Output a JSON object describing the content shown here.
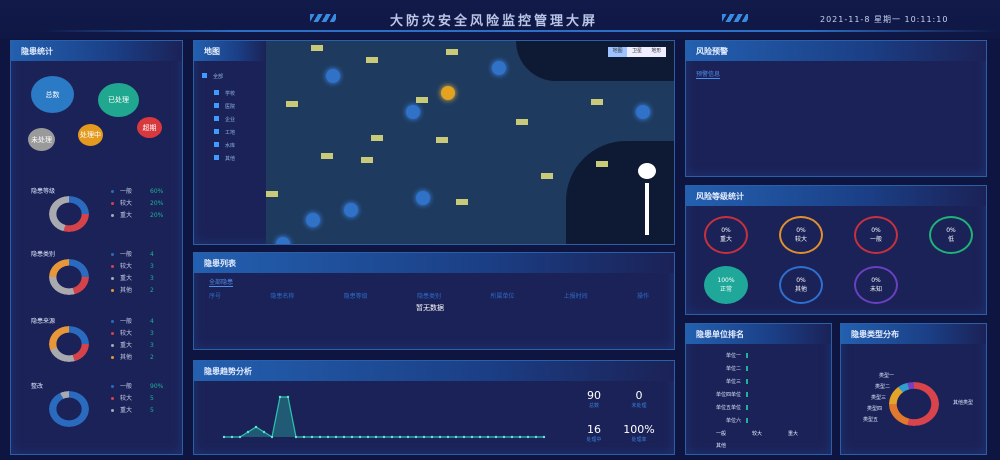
{
  "header": {
    "title": "大防灾安全风险监控管理大屏",
    "datetime": "2021-11-8 星期一 10:11:10"
  },
  "left": {
    "title": "隐患统计",
    "bubbles": [
      {
        "label": "总数",
        "color": "#2a7ac6"
      },
      {
        "label": "已处理",
        "color": "#1fa88f"
      },
      {
        "label": "未处理",
        "color": "#9a9a9a"
      },
      {
        "label": "处理中",
        "color": "#e39a1e"
      },
      {
        "label": "超期",
        "color": "#d7393f"
      }
    ],
    "donuts": [
      {
        "title": "隐患等级",
        "legend": [
          {
            "name": "一般",
            "color": "#2a6bbf",
            "value": "60%"
          },
          {
            "name": "较大",
            "color": "#d4424a",
            "value": "20%"
          },
          {
            "name": "重大",
            "color": "#a9a9b0",
            "value": "20%"
          }
        ]
      },
      {
        "title": "隐患类别",
        "legend": [
          {
            "name": "一般",
            "color": "#2a6bbf",
            "value": "4"
          },
          {
            "name": "较大",
            "color": "#d4424a",
            "value": "3"
          },
          {
            "name": "重大",
            "color": "#a9a9b0",
            "value": "3"
          },
          {
            "name": "其他",
            "color": "#e8963a",
            "value": "2"
          }
        ]
      },
      {
        "title": "隐患来源",
        "legend": [
          {
            "name": "一般",
            "color": "#2a6bbf",
            "value": "4"
          },
          {
            "name": "较大",
            "color": "#d4424a",
            "value": "3"
          },
          {
            "name": "重大",
            "color": "#a9a9b0",
            "value": "3"
          },
          {
            "name": "其他",
            "color": "#e8963a",
            "value": "2"
          }
        ]
      },
      {
        "title": "整改",
        "legend": [
          {
            "name": "一般",
            "color": "#2a6bbf",
            "value": "90%"
          },
          {
            "name": "较大",
            "color": "#d4424a",
            "value": "5"
          },
          {
            "name": "重大",
            "color": "#a9a9b0",
            "value": "5"
          }
        ]
      }
    ]
  },
  "map": {
    "title": "地图",
    "layers": [
      "全部",
      "学校",
      "医院",
      "企业",
      "工地",
      "水库",
      "其他"
    ],
    "view_switch": [
      "地图",
      "卫星",
      "地形"
    ]
  },
  "list": {
    "title": "隐患列表",
    "tab": "全部隐患",
    "columns": [
      "序号",
      "隐患名称",
      "隐患等级",
      "隐患类别",
      "所属单位",
      "上报时间",
      "操作"
    ],
    "empty": "暂无数据"
  },
  "trend": {
    "title": "隐患趋势分析",
    "stats": [
      {
        "value": "90",
        "label": "总数"
      },
      {
        "value": "0",
        "label": "未处理"
      },
      {
        "value": "16",
        "label": "处理中"
      },
      {
        "value": "100%",
        "label": "处理率"
      }
    ],
    "chart_data": {
      "type": "area",
      "values": [
        0,
        0,
        0,
        1,
        2,
        1,
        0,
        8,
        8,
        0,
        0,
        0,
        0,
        0,
        0,
        0,
        0,
        0,
        0,
        0,
        0,
        0,
        0,
        0,
        0,
        0,
        0,
        0,
        0,
        0,
        0,
        0,
        0,
        0,
        0,
        0,
        0,
        0,
        0,
        0,
        0
      ],
      "color": "#2bc4b0"
    }
  },
  "alerts": {
    "title": "风险预警",
    "tab": "预警信息"
  },
  "status": {
    "title": "风险等级统计",
    "items": [
      {
        "label": "0%",
        "sub": "重大",
        "color": "#c8303f"
      },
      {
        "label": "0%",
        "sub": "较大",
        "color": "#e0902e"
      },
      {
        "label": "0%",
        "sub": "一般",
        "color": "#c8303f"
      },
      {
        "label": "0%",
        "sub": "低",
        "color": "#1fb37a"
      },
      {
        "label": "100%",
        "sub": "正常",
        "color": "#1fa89a",
        "filled": true
      },
      {
        "label": "0%",
        "sub": "其他",
        "color": "#2f6fd0"
      },
      {
        "label": "0%",
        "sub": "未知",
        "color": "#6a3fc0"
      }
    ]
  },
  "ranking": {
    "title": "隐患单位排名",
    "rows": [
      "单位一",
      "单位二",
      "单位三",
      "单位四单位",
      "单位五单位",
      "单位六"
    ],
    "legend": [
      "一般",
      "较大",
      "重大",
      "其他"
    ]
  },
  "pie": {
    "title": "隐患类型分布",
    "labels": [
      "类型一",
      "类型二",
      "类型三",
      "类型四",
      "类型五"
    ],
    "side": "其他类型"
  }
}
